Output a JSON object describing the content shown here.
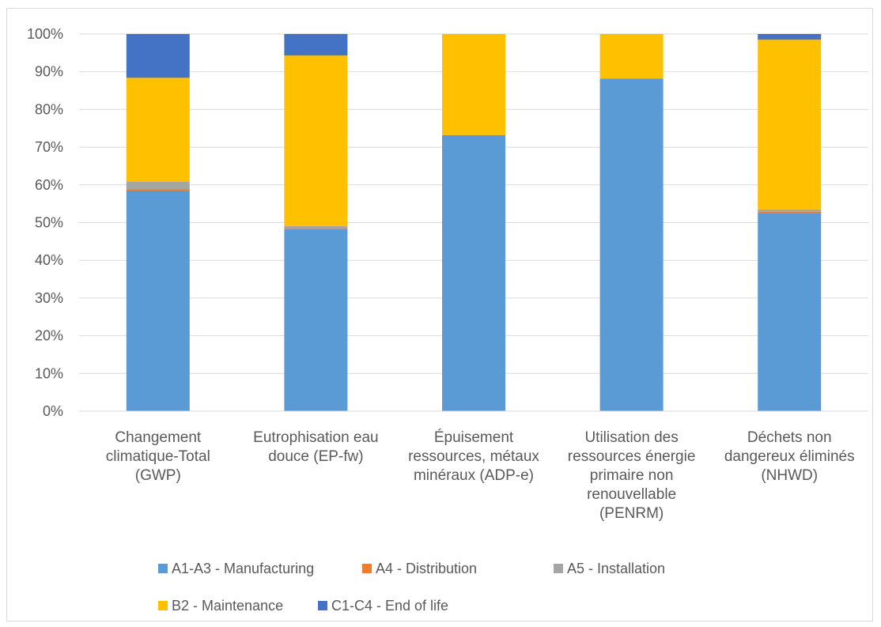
{
  "chart_data": {
    "type": "bar",
    "stacked": true,
    "percent": true,
    "categories": [
      [
        "Changement",
        "climatique-Total",
        "(GWP)"
      ],
      [
        "Eutrophisation eau",
        "douce (EP-fw)"
      ],
      [
        "Épuisement",
        "ressources, métaux",
        "minéraux (ADP-e)"
      ],
      [
        "Utilisation des",
        "ressources énergie",
        "primaire non",
        "renouvellable",
        "(PENRM)"
      ],
      [
        "Déchets non",
        "dangereux éliminés",
        "(NHWD)"
      ]
    ],
    "series": [
      {
        "name": "A1-A3 - Manufacturing",
        "color": "#5b9bd5",
        "values": [
          58.5,
          48.2,
          73.2,
          88.2,
          52.6
        ]
      },
      {
        "name": "A4 - Distribution",
        "color": "#ed7d31",
        "values": [
          0.4,
          0.3,
          0.0,
          0.0,
          0.3
        ]
      },
      {
        "name": "A5 - Installation",
        "color": "#a5a5a5",
        "values": [
          1.9,
          0.6,
          0.0,
          0.0,
          0.6
        ]
      },
      {
        "name": "B2 - Maintenance",
        "color": "#ffc000",
        "values": [
          27.6,
          45.2,
          26.8,
          11.8,
          45.0
        ]
      },
      {
        "name": "C1-C4 - End of life",
        "color": "#4472c4",
        "values": [
          11.6,
          5.7,
          0.0,
          0.0,
          1.5
        ]
      }
    ],
    "yticks": [
      "0%",
      "10%",
      "20%",
      "30%",
      "40%",
      "50%",
      "60%",
      "70%",
      "80%",
      "90%",
      "100%"
    ],
    "ylim": [
      0,
      100
    ],
    "grid": true,
    "legend_position": "bottom",
    "title": "",
    "xlabel": "",
    "ylabel": ""
  }
}
